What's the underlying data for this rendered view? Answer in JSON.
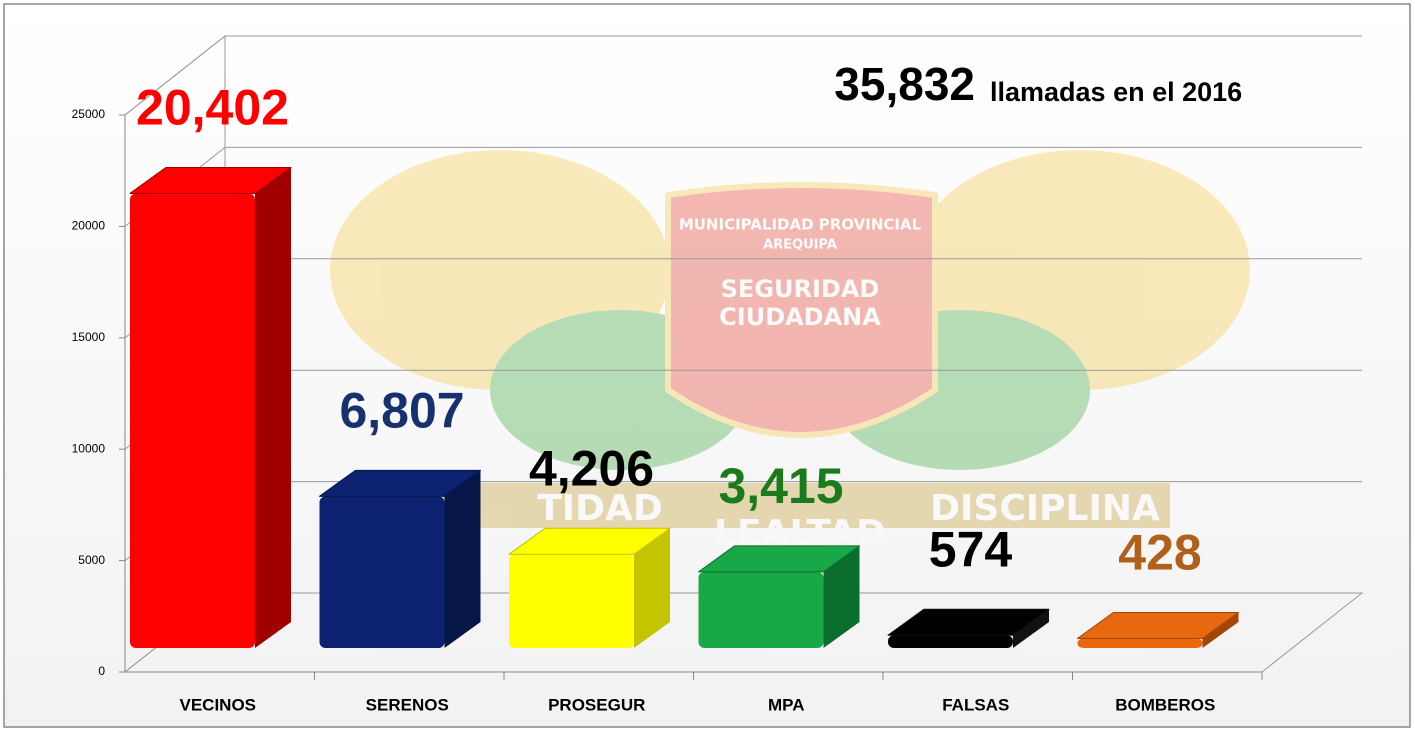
{
  "chart_data": {
    "type": "bar3d",
    "annotation_number": "35,832",
    "annotation_text": "llamadas en el 2016",
    "categories": [
      "VECINOS",
      "SERENOS",
      "PROSEGUR",
      "MPA",
      "FALSAS",
      "BOMBEROS"
    ],
    "values": [
      20402,
      6807,
      4206,
      3415,
      574,
      428
    ],
    "value_labels": [
      "20,402",
      "6,807",
      "4,206",
      "3,415",
      "574",
      "428"
    ],
    "colors": [
      "#ff0000",
      "#0c2270",
      "#ffff00",
      "#18a848",
      "#000000",
      "#e8680f"
    ],
    "side_colors": [
      "#a00000",
      "#061646",
      "#c4c400",
      "#0c6e2c",
      "#111111",
      "#a54505"
    ],
    "label_colors": [
      "#ff0000",
      "#17306e",
      "#000000",
      "#1b7a1b",
      "#000000",
      "#b0601a"
    ],
    "ylim": [
      0,
      25000
    ],
    "yticks": [
      0,
      5000,
      10000,
      15000,
      20000,
      25000
    ],
    "grid": true
  },
  "watermark": {
    "texts": [
      "MUNICIPALIDAD PROVINCIAL",
      "AREQUIPA",
      "SEGURIDAD",
      "CIUDADANA",
      "TIDAD",
      "DISCIPLINA",
      "LEALTAD"
    ]
  }
}
